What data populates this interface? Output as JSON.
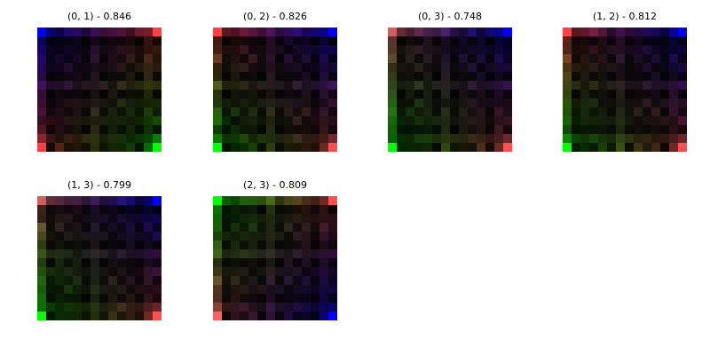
{
  "panels": [
    {
      "title": "(0, 1) - 0.846",
      "corners": {
        "top_left": "#0000ff",
        "top_right": "#ff4040",
        "bottom_left": "#ff4040",
        "bottom_right": "#00ff00"
      }
    },
    {
      "title": "(0, 2) - 0.826",
      "corners": {
        "top_left": "#ff4040",
        "top_right": "#0000ff",
        "bottom_left": "#00ff00",
        "bottom_right": "#ff5050"
      }
    },
    {
      "title": "(0, 3) - 0.748",
      "corners": {
        "top_left": "#d06060",
        "top_right": "#0000ff",
        "bottom_left": "#00ff00",
        "bottom_right": "#ff5050"
      }
    },
    {
      "title": "(1, 2) - 0.812",
      "corners": {
        "top_left": "#ff4040",
        "top_right": "#0000ff",
        "bottom_left": "#00ff00",
        "bottom_right": "#ff5050"
      }
    },
    {
      "title": "(1, 3) - 0.799",
      "corners": {
        "top_left": "#d06060",
        "top_right": "#0000ff",
        "bottom_left": "#00ff00",
        "bottom_right": "#ff5050"
      }
    },
    {
      "title": "(2, 3) - 0.809",
      "corners": {
        "top_left": "#00ff00",
        "top_right": "#ff5050",
        "bottom_left": "#ff6060",
        "bottom_right": "#0000ff"
      }
    }
  ],
  "grid_cells": 14,
  "colors": {
    "background": "#ffffff",
    "cell_base": "#000000",
    "red": "#ff4040",
    "green": "#00ff00",
    "blue": "#0000ff"
  }
}
